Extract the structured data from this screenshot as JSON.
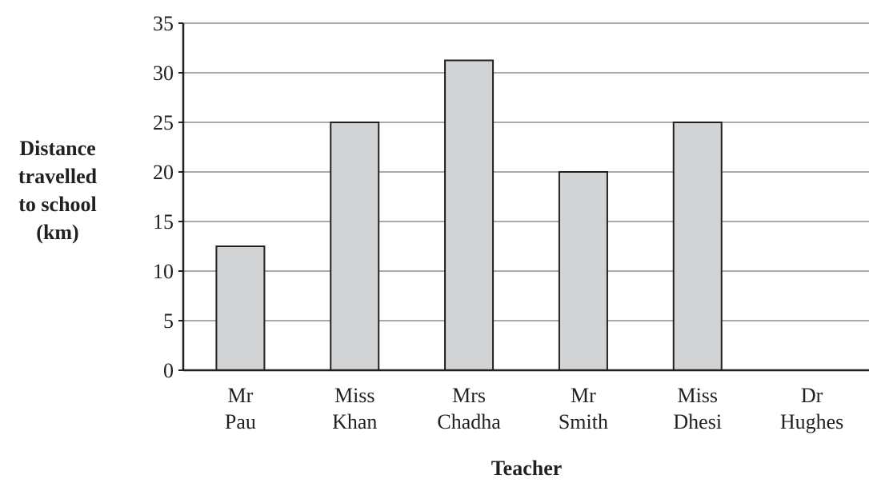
{
  "chart_data": {
    "type": "bar",
    "categories": [
      [
        "Mr",
        "Pau"
      ],
      [
        "Miss",
        "Khan"
      ],
      [
        "Mrs",
        "Chadha"
      ],
      [
        "Mr",
        "Smith"
      ],
      [
        "Miss",
        "Dhesi"
      ],
      [
        "Dr",
        "Hughes"
      ]
    ],
    "values": [
      12.5,
      25,
      31.25,
      20,
      25,
      null
    ],
    "xlabel": "Teacher",
    "ylabel": [
      "Distance",
      "travelled",
      "to school",
      "(km)"
    ],
    "ylim": [
      0,
      35
    ],
    "yticks": [
      0,
      5,
      10,
      15,
      20,
      25,
      30,
      35
    ],
    "grid": true,
    "bar_color": "#d1d3d4",
    "grid_color": "#a7a9ac",
    "axis_color": "#231f20"
  }
}
